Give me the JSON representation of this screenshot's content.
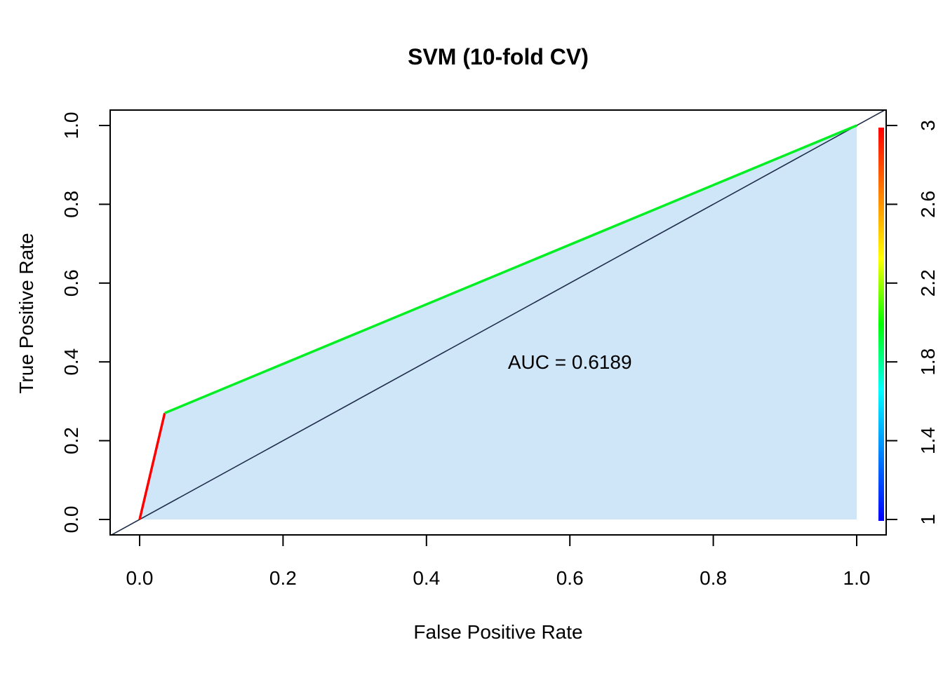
{
  "chart_data": {
    "type": "line",
    "title": "SVM (10-fold CV)",
    "xlabel": "False Positive Rate",
    "ylabel": "True Positive Rate",
    "xlim": [
      0,
      1
    ],
    "ylim": [
      0,
      1
    ],
    "x_ticks": [
      "0.0",
      "0.2",
      "0.4",
      "0.6",
      "0.8",
      "1.0"
    ],
    "y_ticks": [
      "0.0",
      "0.2",
      "0.4",
      "0.6",
      "0.8",
      "1.0"
    ],
    "grid": false,
    "legend": "none",
    "series": [
      {
        "points": [
          [
            0,
            0
          ],
          [
            0.035,
            0.27
          ],
          [
            1,
            1
          ]
        ],
        "cutoff_colors": [
          "#ff0000",
          "#00ee22"
        ]
      }
    ],
    "auc_fill_color": "#cfe5f8",
    "diagonal": [
      [
        0,
        0
      ],
      [
        1,
        1
      ]
    ],
    "diagonal_color": "#1f2d4a",
    "annotation": "AUC = 0.6189",
    "annotation_at": [
      0.6,
      0.4
    ],
    "colorbar": {
      "range": [
        1,
        3
      ],
      "tick_values": [
        1,
        1.4,
        1.8,
        2.2,
        2.6,
        3
      ],
      "tick_labels": [
        "1",
        "1.4",
        "1.8",
        "2.2",
        "2.6",
        "3"
      ],
      "colors": [
        "#0000ff",
        "#0080ff",
        "#00ffff",
        "#00ff00",
        "#ffff00",
        "#ff8000",
        "#ff0000"
      ]
    }
  }
}
